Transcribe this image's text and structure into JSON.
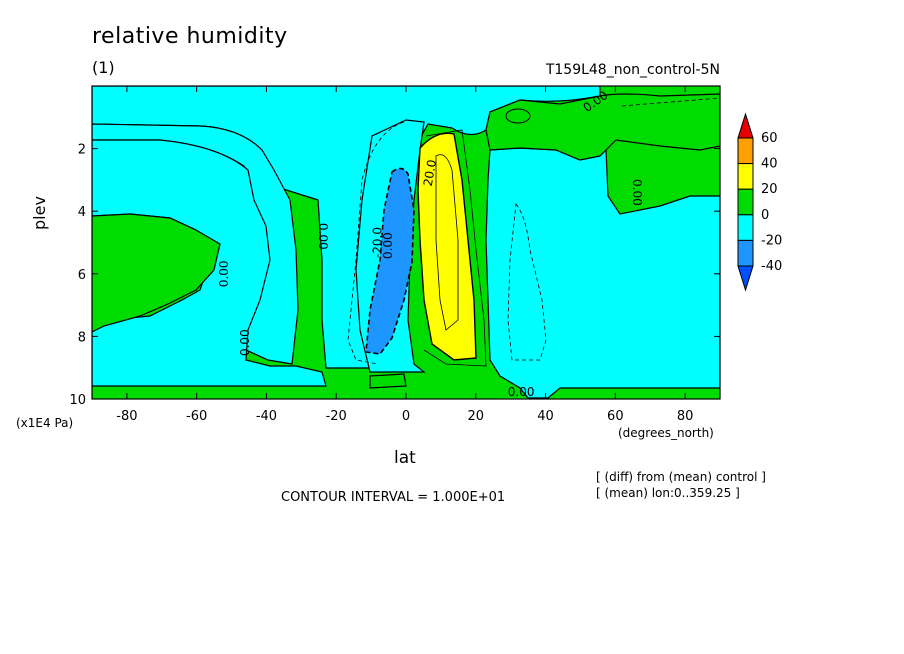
{
  "chart_data": {
    "type": "heatmap",
    "title": "relative humidity",
    "subtitle": "(1)",
    "run_label": "T159L48_non_control-5N",
    "xlabel": "lat",
    "x_unit": "(degrees_north)",
    "ylabel": "plev",
    "y_unit": "(x1E4 Pa)",
    "xlim": [
      -90,
      90
    ],
    "ylim": [
      10,
      0
    ],
    "x_ticks": [
      -80,
      -60,
      -40,
      -20,
      0,
      20,
      40,
      60,
      80
    ],
    "x_tick_labels": [
      "-80",
      "-60",
      "-40",
      "-20",
      "0",
      "20",
      "40",
      "60",
      "80"
    ],
    "y_ticks": [
      2,
      4,
      6,
      8,
      10
    ],
    "y_tick_labels": [
      "2",
      "4",
      "6",
      "8",
      "10"
    ],
    "contour_interval_text": "CONTOUR INTERVAL = 1.000E+01",
    "notes": [
      "[ (diff) from (mean) control ]",
      "[ (mean) lon:0..359.25 ]"
    ],
    "contour_labels": [
      "0.00",
      "-20.0",
      "20.0",
      "0.00",
      "0.00",
      "0.00",
      "0.00",
      "0.00",
      "0.00"
    ],
    "colorbar": {
      "levels": [
        "60",
        "40",
        "20",
        "0",
        "-20",
        "-40"
      ],
      "colors": [
        "#e60000",
        "#ffa000",
        "#ffff00",
        "#00dc00",
        "#00ffff",
        "#1e96ff",
        "#0050ff"
      ]
    },
    "regions": [
      {
        "name": "background",
        "value_class": "0 to 20",
        "color": "#00dc00"
      },
      {
        "name": "left-dry-region",
        "value_class": "-20 to 0",
        "color": "#00ffff"
      },
      {
        "name": "equatorial-dry-band",
        "value_class": "-20 to 0",
        "color": "#00ffff"
      },
      {
        "name": "south-tropics-strong-dry",
        "value_class": "-40 to -20",
        "color": "#1e96ff"
      },
      {
        "name": "north-tropics-moist",
        "value_class": "20 to 40",
        "color": "#ffff00"
      },
      {
        "name": "north-midlat-dry-region",
        "value_class": "-20 to 0",
        "color": "#00ffff"
      }
    ]
  }
}
